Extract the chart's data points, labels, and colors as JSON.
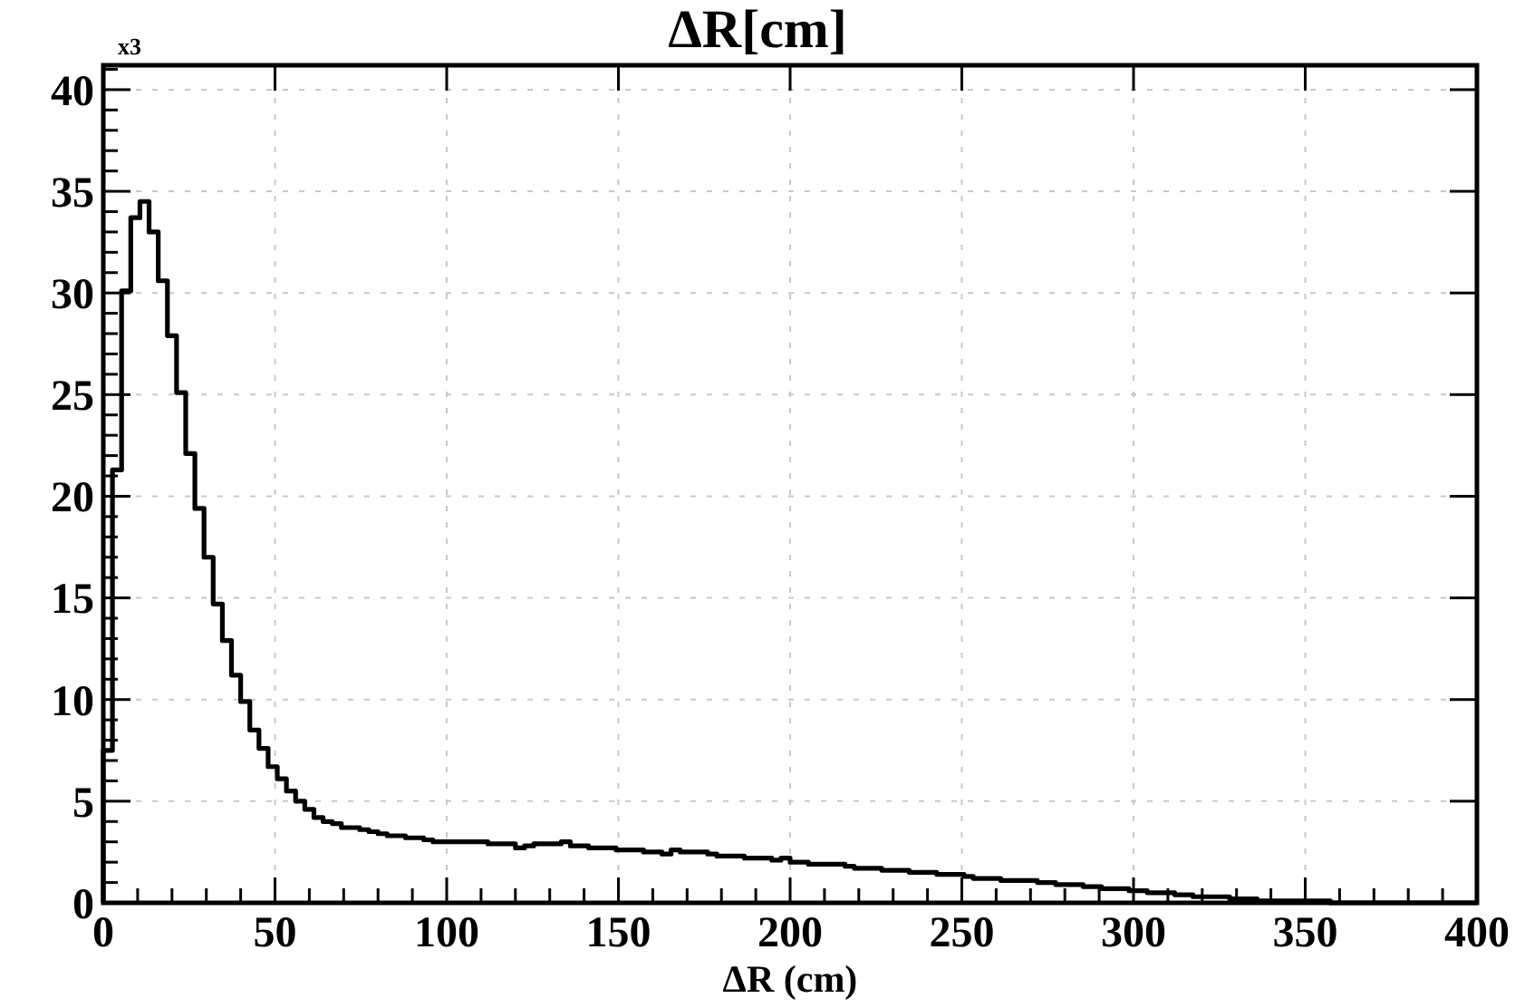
{
  "chart_data": {
    "type": "histogram",
    "title": "ΔR[cm]",
    "xlabel": "ΔR  (cm)",
    "annotations": [
      "x3"
    ],
    "color": "#000000",
    "grid": true,
    "bins": [
      0,
      2.67,
      5.33,
      8,
      10.67,
      13.33,
      16,
      18.67,
      21.33,
      24,
      26.67,
      29.33,
      32,
      34.67,
      37.33,
      40,
      42.67,
      45.33,
      48,
      50.67,
      53.33,
      56,
      58.67,
      61.33,
      64,
      66.67,
      69.33,
      72,
      74.67,
      77.33,
      80,
      82.67,
      85.33,
      88,
      90.67,
      93.33,
      96,
      98.67,
      101.33,
      104,
      106.67,
      109.33,
      112,
      114.67,
      117.33,
      120,
      122.67,
      125.33,
      128,
      130.67,
      133.33,
      136,
      138.67,
      141.33,
      144,
      146.67,
      149.33,
      152,
      154.67,
      157.33,
      160,
      162.67,
      165.33,
      168,
      170.67,
      173.33,
      176,
      178.67,
      181.33,
      184,
      186.67,
      189.33,
      192,
      194.67,
      197.33,
      200,
      202.67,
      205.33,
      208,
      210.67,
      213.33,
      216,
      218.67,
      221.33,
      224,
      226.67,
      229.33,
      232,
      234.67,
      237.33,
      240,
      242.67,
      245.33,
      248,
      250.67,
      253.33,
      256,
      258.67,
      261.33,
      264,
      266.67,
      269.33,
      272,
      274.67,
      277.33,
      280,
      282.67,
      285.33,
      288,
      290.67,
      293.33,
      296,
      298.67,
      301.33,
      304,
      306.67,
      309.33,
      312,
      314.67,
      317.33,
      320,
      322.67,
      325.33,
      328,
      330.67,
      333.33,
      336,
      338.67,
      341.33,
      344,
      346.67,
      349.33,
      352,
      354.67,
      357.33,
      360,
      362.67,
      365.33,
      368,
      370.67,
      373.33,
      376,
      378.67,
      381.33,
      384,
      386.67,
      389.33,
      392,
      394.67,
      397.33,
      400
    ],
    "values": [
      7.5,
      21.3,
      30.1,
      33.7,
      34.5,
      33.0,
      30.6,
      27.9,
      25.1,
      22.1,
      19.4,
      17.0,
      14.7,
      12.9,
      11.2,
      9.9,
      8.5,
      7.6,
      6.7,
      6.1,
      5.5,
      5.0,
      4.6,
      4.2,
      4.0,
      3.9,
      3.7,
      3.7,
      3.6,
      3.5,
      3.4,
      3.3,
      3.3,
      3.2,
      3.2,
      3.1,
      3.0,
      3.0,
      3.0,
      3.0,
      3.0,
      3.0,
      2.9,
      2.9,
      2.9,
      2.7,
      2.8,
      2.9,
      2.9,
      2.9,
      3.0,
      2.8,
      2.8,
      2.7,
      2.7,
      2.7,
      2.6,
      2.6,
      2.6,
      2.5,
      2.5,
      2.4,
      2.6,
      2.5,
      2.5,
      2.5,
      2.4,
      2.3,
      2.3,
      2.3,
      2.2,
      2.2,
      2.2,
      2.1,
      2.2,
      2.0,
      2.0,
      1.9,
      1.9,
      1.9,
      1.9,
      1.8,
      1.7,
      1.7,
      1.7,
      1.6,
      1.6,
      1.6,
      1.5,
      1.5,
      1.5,
      1.4,
      1.4,
      1.4,
      1.3,
      1.2,
      1.2,
      1.2,
      1.1,
      1.1,
      1.1,
      1.1,
      1.0,
      1.0,
      0.9,
      0.9,
      0.9,
      0.8,
      0.8,
      0.7,
      0.7,
      0.7,
      0.6,
      0.6,
      0.5,
      0.5,
      0.5,
      0.4,
      0.4,
      0.3,
      0.3,
      0.3,
      0.3,
      0.2,
      0.2,
      0.2,
      0.1,
      0.1,
      0.1,
      0.1,
      0.1,
      0.1,
      0.1,
      0.1,
      0,
      0,
      0,
      0,
      0,
      0,
      0,
      0,
      0,
      0,
      0,
      0,
      0,
      0,
      0,
      0
    ],
    "xlim": [
      0,
      400
    ],
    "ylim": [
      0,
      41.2
    ],
    "xticks": [
      0,
      {
        "value": 10,
        "label": null
      },
      {
        "value": 20,
        "label": null
      },
      {
        "value": 30,
        "label": null
      },
      {
        "value": 40,
        "label": null
      },
      50,
      {
        "value": 60,
        "label": null
      },
      {
        "value": 70,
        "label": null
      },
      {
        "value": 80,
        "label": null
      },
      {
        "value": 90,
        "label": null
      },
      100,
      {
        "value": 110,
        "label": null
      },
      {
        "value": 120,
        "label": null
      },
      {
        "value": 130,
        "label": null
      },
      {
        "value": 140,
        "label": null
      },
      150,
      {
        "value": 160,
        "label": null
      },
      {
        "value": 170,
        "label": null
      },
      {
        "value": 180,
        "label": null
      },
      {
        "value": 190,
        "label": null
      },
      200,
      {
        "value": 210,
        "label": null
      },
      {
        "value": 220,
        "label": null
      },
      {
        "value": 230,
        "label": null
      },
      {
        "value": 240,
        "label": null
      },
      250,
      {
        "value": 260,
        "label": null
      },
      {
        "value": 270,
        "label": null
      },
      {
        "value": 280,
        "label": null
      },
      {
        "value": 290,
        "label": null
      },
      300,
      {
        "value": 310,
        "label": null
      },
      {
        "value": 320,
        "label": null
      },
      {
        "value": 330,
        "label": null
      },
      {
        "value": 340,
        "label": null
      },
      350,
      {
        "value": 360,
        "label": null
      },
      {
        "value": 370,
        "label": null
      },
      {
        "value": 380,
        "label": null
      },
      {
        "value": 390,
        "label": null
      },
      400
    ],
    "yticks": [
      0,
      {
        "value": 1,
        "label": null
      },
      {
        "value": 2,
        "label": null
      },
      {
        "value": 3,
        "label": null
      },
      {
        "value": 4,
        "label": null
      },
      5,
      {
        "value": 6,
        "label": null
      },
      {
        "value": 7,
        "label": null
      },
      {
        "value": 8,
        "label": null
      },
      {
        "value": 9,
        "label": null
      },
      10,
      {
        "value": 11,
        "label": null
      },
      {
        "value": 12,
        "label": null
      },
      {
        "value": 13,
        "label": null
      },
      {
        "value": 14,
        "label": null
      },
      15,
      {
        "value": 16,
        "label": null
      },
      {
        "value": 17,
        "label": null
      },
      {
        "value": 18,
        "label": null
      },
      {
        "value": 19,
        "label": null
      },
      20,
      {
        "value": 21,
        "label": null
      },
      {
        "value": 22,
        "label": null
      },
      {
        "value": 23,
        "label": null
      },
      {
        "value": 24,
        "label": null
      },
      25,
      {
        "value": 26,
        "label": null
      },
      {
        "value": 27,
        "label": null
      },
      {
        "value": 28,
        "label": null
      },
      {
        "value": 29,
        "label": null
      },
      30,
      {
        "value": 31,
        "label": null
      },
      {
        "value": 32,
        "label": null
      },
      {
        "value": 33,
        "label": null
      },
      {
        "value": 34,
        "label": null
      },
      35,
      {
        "value": 36,
        "label": null
      },
      {
        "value": 37,
        "label": null
      },
      {
        "value": 38,
        "label": null
      },
      {
        "value": 39,
        "label": null
      },
      40,
      {
        "value": 41,
        "label": null
      }
    ]
  }
}
